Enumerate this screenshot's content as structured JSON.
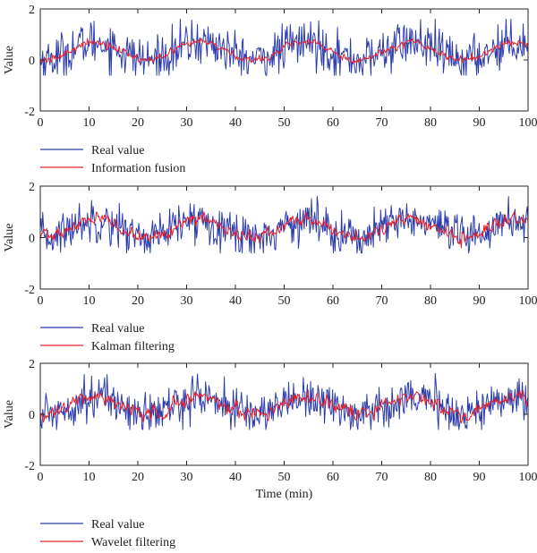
{
  "colors": {
    "real": "#2b3dae",
    "filtered": "#e8212b"
  },
  "chart_data": [
    {
      "type": "line",
      "ylabel": "Value",
      "xlabel": "",
      "xlim": [
        0,
        100
      ],
      "ylim": [
        -2,
        2
      ],
      "xticks": [
        "0",
        "10",
        "20",
        "30",
        "40",
        "50",
        "60",
        "70",
        "80",
        "90",
        "100"
      ],
      "yticks": [
        "2",
        "0",
        "-2"
      ],
      "grid": false,
      "legend_position": "below",
      "signal": {
        "mean": 0.35,
        "amplitude": 0.35,
        "period_min": 21.5,
        "phase_min": 6
      },
      "series": [
        {
          "name": "Real value",
          "noise_std": 0.45,
          "range": [
            -0.6,
            1.6
          ]
        },
        {
          "name": "Information fusion",
          "noise_std": 0.12,
          "range": [
            -0.1,
            1.0
          ]
        }
      ]
    },
    {
      "type": "line",
      "ylabel": "Value",
      "xlabel": "",
      "xlim": [
        0,
        100
      ],
      "ylim": [
        -2,
        2
      ],
      "xticks": [
        "0",
        "10",
        "20",
        "30",
        "40",
        "50",
        "60",
        "70",
        "80",
        "90",
        "100"
      ],
      "yticks": [
        "2",
        "0",
        "-2"
      ],
      "grid": false,
      "legend_position": "below",
      "signal": {
        "mean": 0.35,
        "amplitude": 0.35,
        "period_min": 21.5,
        "phase_min": 6
      },
      "series": [
        {
          "name": "Real value",
          "noise_std": 0.42,
          "range": [
            -0.6,
            1.6
          ]
        },
        {
          "name": "Kalman filtering",
          "noise_std": 0.2,
          "range": [
            -0.4,
            1.0
          ]
        }
      ]
    },
    {
      "type": "line",
      "ylabel": "Value",
      "xlabel": "Time (min)",
      "xlim": [
        0,
        100
      ],
      "ylim": [
        -2,
        2
      ],
      "xticks": [
        "0",
        "10",
        "20",
        "30",
        "40",
        "50",
        "60",
        "70",
        "80",
        "90",
        "100"
      ],
      "yticks": [
        "2",
        "0",
        "-2"
      ],
      "grid": false,
      "legend_position": "below",
      "signal": {
        "mean": 0.35,
        "amplitude": 0.35,
        "period_min": 21.5,
        "phase_min": 6
      },
      "series": [
        {
          "name": "Real value",
          "noise_std": 0.42,
          "range": [
            -0.6,
            1.6
          ]
        },
        {
          "name": "Wavelet filtering",
          "noise_std": 0.22,
          "range": [
            -0.5,
            1.0
          ]
        }
      ]
    }
  ]
}
